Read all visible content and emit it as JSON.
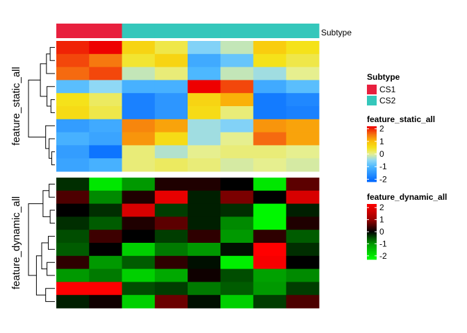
{
  "chart_data": {
    "type": "heatmap",
    "columns": 8,
    "column_annotation": {
      "name": "Subtype",
      "values": [
        "CS1",
        "CS1",
        "CS2",
        "CS2",
        "CS2",
        "CS2",
        "CS2",
        "CS2"
      ],
      "legend": [
        {
          "label": "CS1",
          "color": "#e8203e"
        },
        {
          "label": "CS2",
          "color": "#35c7bb"
        }
      ]
    },
    "blocks": [
      {
        "name": "feature_static_all",
        "palette": "static",
        "legend_ticks": [
          2,
          1,
          0,
          -1,
          -2
        ],
        "range": [
          -2.2,
          2.2
        ],
        "values": [
          [
            2.0,
            2.2,
            0.7,
            0.3,
            -0.6,
            -0.2,
            0.8,
            0.5
          ],
          [
            1.8,
            1.5,
            0.4,
            0.7,
            -1.2,
            -0.8,
            0.5,
            0.3
          ],
          [
            1.6,
            1.8,
            -0.2,
            0.1,
            -1.0,
            -0.2,
            -0.4,
            0.0
          ],
          [
            -0.9,
            -0.5,
            -1.1,
            -1.1,
            2.2,
            1.8,
            -1.2,
            -0.9
          ],
          [
            0.5,
            0.2,
            -1.8,
            -1.5,
            0.7,
            1.1,
            -1.9,
            -1.7
          ],
          [
            0.6,
            0.3,
            -1.8,
            -1.5,
            0.6,
            0.1,
            -1.9,
            -1.8
          ],
          [
            -1.4,
            -1.2,
            1.4,
            1.2,
            -0.4,
            -0.6,
            1.3,
            1.2
          ],
          [
            -1.1,
            -1.3,
            1.3,
            0.6,
            -0.4,
            0.0,
            1.6,
            1.2
          ],
          [
            -1.4,
            -2.0,
            0.1,
            -0.3,
            0.0,
            0.1,
            0.1,
            0.0
          ],
          [
            -1.3,
            -1.1,
            0.1,
            0.2,
            0.1,
            -0.1,
            0.0,
            -0.1
          ]
        ]
      },
      {
        "name": "feature_dynamic_all",
        "palette": "dynamic",
        "legend_ticks": [
          2,
          1,
          0,
          -1,
          -2
        ],
        "range": [
          -2.3,
          2.3
        ],
        "values": [
          [
            -0.3,
            -2.0,
            -1.0,
            0.2,
            0.2,
            0.0,
            -2.0,
            0.6
          ],
          [
            0.5,
            -0.9,
            0.2,
            2.0,
            -0.2,
            0.8,
            0.0,
            1.8
          ],
          [
            0.0,
            -0.3,
            1.8,
            -0.4,
            -0.2,
            -0.3,
            -2.2,
            -0.2
          ],
          [
            -0.3,
            -0.6,
            0.2,
            0.6,
            -0.2,
            -0.9,
            -2.2,
            0.2
          ],
          [
            -0.5,
            0.4,
            0.0,
            -0.4,
            0.3,
            -1.0,
            0.3,
            -0.6
          ],
          [
            -0.6,
            0.0,
            -1.7,
            -0.8,
            -1.0,
            -0.1,
            2.3,
            -0.3
          ],
          [
            0.3,
            -1.0,
            -0.6,
            0.3,
            -0.1,
            -2.1,
            2.2,
            0.0
          ],
          [
            -1.0,
            -0.8,
            -1.7,
            -1.2,
            0.1,
            -0.5,
            -1.1,
            -0.9
          ],
          [
            2.3,
            2.3,
            -0.5,
            -0.4,
            -0.8,
            -0.6,
            -1.0,
            -0.4
          ],
          [
            -0.2,
            0.1,
            -1.7,
            0.7,
            -0.1,
            -1.7,
            -0.4,
            0.5
          ]
        ]
      }
    ],
    "legend_placement": "right",
    "grid": false
  }
}
